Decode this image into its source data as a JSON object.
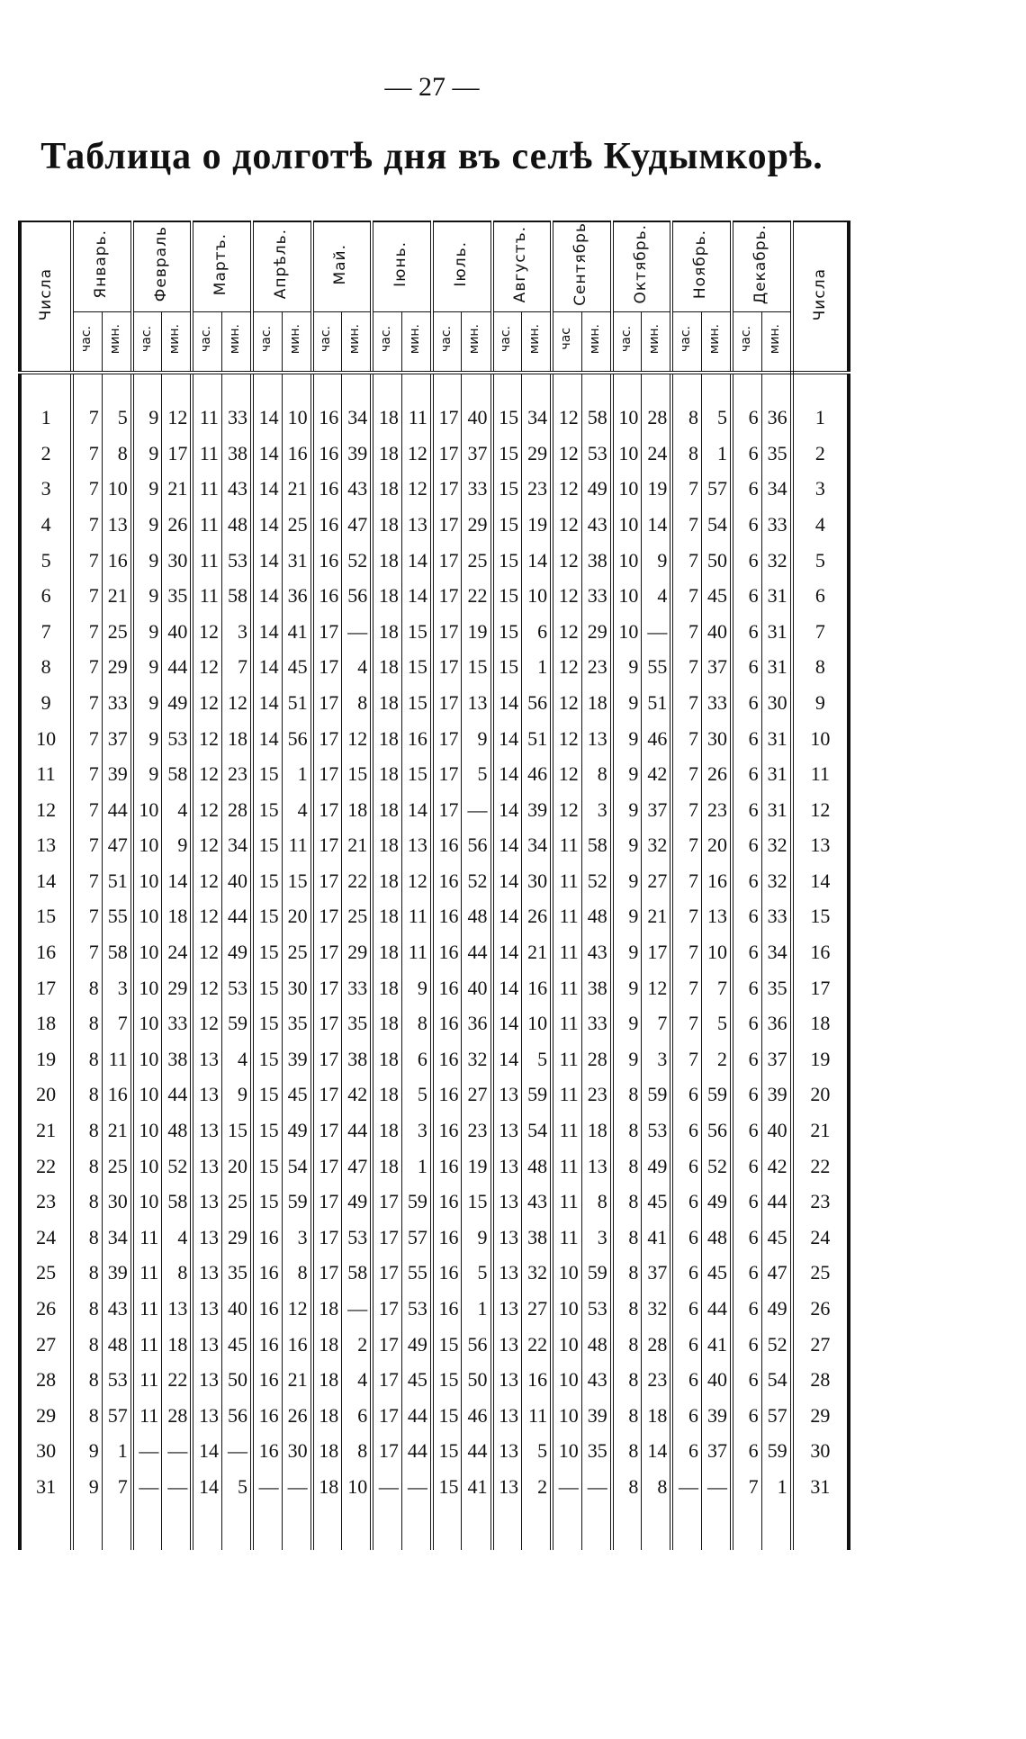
{
  "header": {
    "page_number": "— 27 —",
    "title": "Таблица о долготѣ дня въ селѣ Кудымкорѣ."
  },
  "table": {
    "row_label": "Числа",
    "months": [
      {
        "name": "Январь.",
        "hours": "час.",
        "minutes": "мин."
      },
      {
        "name": "Февраль",
        "hours": "час.",
        "minutes": "мин."
      },
      {
        "name": "Мартъ.",
        "hours": "час.",
        "minutes": "мин."
      },
      {
        "name": "Апрѣль.",
        "hours": "час.",
        "minutes": "мин."
      },
      {
        "name": "Май.",
        "hours": "час.",
        "minutes": "мин."
      },
      {
        "name": "Iюнь.",
        "hours": "час.",
        "minutes": "мин."
      },
      {
        "name": "Iюль.",
        "hours": "час.",
        "minutes": "мин."
      },
      {
        "name": "Августъ.",
        "hours": "час.",
        "minutes": "мин."
      },
      {
        "name": "Сентябрь",
        "hours": "час",
        "minutes": "мин."
      },
      {
        "name": "Октябрь.",
        "hours": "час.",
        "minutes": "мин."
      },
      {
        "name": "Ноябрь.",
        "hours": "час.",
        "minutes": "мин."
      },
      {
        "name": "Декабрь.",
        "hours": "час.",
        "minutes": "мин."
      }
    ],
    "rows": [
      [
        1,
        7,
        5,
        9,
        12,
        11,
        33,
        14,
        10,
        16,
        34,
        18,
        11,
        17,
        40,
        15,
        34,
        12,
        58,
        10,
        28,
        8,
        5,
        6,
        36
      ],
      [
        2,
        7,
        8,
        9,
        17,
        11,
        38,
        14,
        16,
        16,
        39,
        18,
        12,
        17,
        37,
        15,
        29,
        12,
        53,
        10,
        24,
        8,
        1,
        6,
        35
      ],
      [
        3,
        7,
        10,
        9,
        21,
        11,
        43,
        14,
        21,
        16,
        43,
        18,
        12,
        17,
        33,
        15,
        23,
        12,
        49,
        10,
        19,
        7,
        57,
        6,
        34
      ],
      [
        4,
        7,
        13,
        9,
        26,
        11,
        48,
        14,
        25,
        16,
        47,
        18,
        13,
        17,
        29,
        15,
        19,
        12,
        43,
        10,
        14,
        7,
        54,
        6,
        33
      ],
      [
        5,
        7,
        16,
        9,
        30,
        11,
        53,
        14,
        31,
        16,
        52,
        18,
        14,
        17,
        25,
        15,
        14,
        12,
        38,
        10,
        9,
        7,
        50,
        6,
        32
      ],
      [
        6,
        7,
        21,
        9,
        35,
        11,
        58,
        14,
        36,
        16,
        56,
        18,
        14,
        17,
        22,
        15,
        10,
        12,
        33,
        10,
        4,
        7,
        45,
        6,
        31
      ],
      [
        7,
        7,
        25,
        9,
        40,
        12,
        3,
        14,
        41,
        17,
        "—",
        18,
        15,
        17,
        19,
        15,
        6,
        12,
        29,
        10,
        "—",
        7,
        40,
        6,
        31
      ],
      [
        8,
        7,
        29,
        9,
        44,
        12,
        7,
        14,
        45,
        17,
        4,
        18,
        15,
        17,
        15,
        15,
        1,
        12,
        23,
        9,
        55,
        7,
        37,
        6,
        31
      ],
      [
        9,
        7,
        33,
        9,
        49,
        12,
        12,
        14,
        51,
        17,
        8,
        18,
        15,
        17,
        13,
        14,
        56,
        12,
        18,
        9,
        51,
        7,
        33,
        6,
        30
      ],
      [
        10,
        7,
        37,
        9,
        53,
        12,
        18,
        14,
        56,
        17,
        12,
        18,
        16,
        17,
        9,
        14,
        51,
        12,
        13,
        9,
        46,
        7,
        30,
        6,
        31
      ],
      [
        11,
        7,
        39,
        9,
        58,
        12,
        23,
        15,
        1,
        17,
        15,
        18,
        15,
        17,
        5,
        14,
        46,
        12,
        8,
        9,
        42,
        7,
        26,
        6,
        31
      ],
      [
        12,
        7,
        44,
        10,
        4,
        12,
        28,
        15,
        4,
        17,
        18,
        18,
        14,
        17,
        "—",
        14,
        39,
        12,
        3,
        9,
        37,
        7,
        23,
        6,
        31
      ],
      [
        13,
        7,
        47,
        10,
        9,
        12,
        34,
        15,
        11,
        17,
        21,
        18,
        13,
        16,
        56,
        14,
        34,
        11,
        58,
        9,
        32,
        7,
        20,
        6,
        32
      ],
      [
        14,
        7,
        51,
        10,
        14,
        12,
        40,
        15,
        15,
        17,
        22,
        18,
        12,
        16,
        52,
        14,
        30,
        11,
        52,
        9,
        27,
        7,
        16,
        6,
        32
      ],
      [
        15,
        7,
        55,
        10,
        18,
        12,
        44,
        15,
        20,
        17,
        25,
        18,
        11,
        16,
        48,
        14,
        26,
        11,
        48,
        9,
        21,
        7,
        13,
        6,
        33
      ],
      [
        16,
        7,
        58,
        10,
        24,
        12,
        49,
        15,
        25,
        17,
        29,
        18,
        11,
        16,
        44,
        14,
        21,
        11,
        43,
        9,
        17,
        7,
        10,
        6,
        34
      ],
      [
        17,
        8,
        3,
        10,
        29,
        12,
        53,
        15,
        30,
        17,
        33,
        18,
        9,
        16,
        40,
        14,
        16,
        11,
        38,
        9,
        12,
        7,
        7,
        6,
        35
      ],
      [
        18,
        8,
        7,
        10,
        33,
        12,
        59,
        15,
        35,
        17,
        35,
        18,
        8,
        16,
        36,
        14,
        10,
        11,
        33,
        9,
        7,
        7,
        5,
        6,
        36
      ],
      [
        19,
        8,
        11,
        10,
        38,
        13,
        4,
        15,
        39,
        17,
        38,
        18,
        6,
        16,
        32,
        14,
        5,
        11,
        28,
        9,
        3,
        7,
        2,
        6,
        37
      ],
      [
        20,
        8,
        16,
        10,
        44,
        13,
        9,
        15,
        45,
        17,
        42,
        18,
        5,
        16,
        27,
        13,
        59,
        11,
        23,
        8,
        59,
        6,
        59,
        6,
        39
      ],
      [
        21,
        8,
        21,
        10,
        48,
        13,
        15,
        15,
        49,
        17,
        44,
        18,
        3,
        16,
        23,
        13,
        54,
        11,
        18,
        8,
        53,
        6,
        56,
        6,
        40
      ],
      [
        22,
        8,
        25,
        10,
        52,
        13,
        20,
        15,
        54,
        17,
        47,
        18,
        1,
        16,
        19,
        13,
        48,
        11,
        13,
        8,
        49,
        6,
        52,
        6,
        42
      ],
      [
        23,
        8,
        30,
        10,
        58,
        13,
        25,
        15,
        59,
        17,
        49,
        17,
        59,
        16,
        15,
        13,
        43,
        11,
        8,
        8,
        45,
        6,
        49,
        6,
        44
      ],
      [
        24,
        8,
        34,
        11,
        4,
        13,
        29,
        16,
        3,
        17,
        53,
        17,
        57,
        16,
        9,
        13,
        38,
        11,
        3,
        8,
        41,
        6,
        48,
        6,
        45
      ],
      [
        25,
        8,
        39,
        11,
        8,
        13,
        35,
        16,
        8,
        17,
        58,
        17,
        55,
        16,
        5,
        13,
        32,
        10,
        59,
        8,
        37,
        6,
        45,
        6,
        47
      ],
      [
        26,
        8,
        43,
        11,
        13,
        13,
        40,
        16,
        12,
        18,
        "—",
        17,
        53,
        16,
        1,
        13,
        27,
        10,
        53,
        8,
        32,
        6,
        44,
        6,
        49
      ],
      [
        27,
        8,
        48,
        11,
        18,
        13,
        45,
        16,
        16,
        18,
        2,
        17,
        49,
        15,
        56,
        13,
        22,
        10,
        48,
        8,
        28,
        6,
        41,
        6,
        52
      ],
      [
        28,
        8,
        53,
        11,
        22,
        13,
        50,
        16,
        21,
        18,
        4,
        17,
        45,
        15,
        50,
        13,
        16,
        10,
        43,
        8,
        23,
        6,
        40,
        6,
        54
      ],
      [
        29,
        8,
        57,
        11,
        28,
        13,
        56,
        16,
        26,
        18,
        6,
        17,
        44,
        15,
        46,
        13,
        11,
        10,
        39,
        8,
        18,
        6,
        39,
        6,
        57
      ],
      [
        30,
        9,
        1,
        "—",
        "—",
        14,
        "—",
        16,
        30,
        18,
        8,
        17,
        44,
        15,
        44,
        13,
        5,
        10,
        35,
        8,
        14,
        6,
        37,
        6,
        59
      ],
      [
        31,
        9,
        7,
        "—",
        "—",
        14,
        5,
        "—",
        "—",
        18,
        10,
        "—",
        "—",
        15,
        41,
        13,
        2,
        "—",
        "—",
        8,
        8,
        "—",
        "—",
        7,
        1
      ]
    ]
  }
}
